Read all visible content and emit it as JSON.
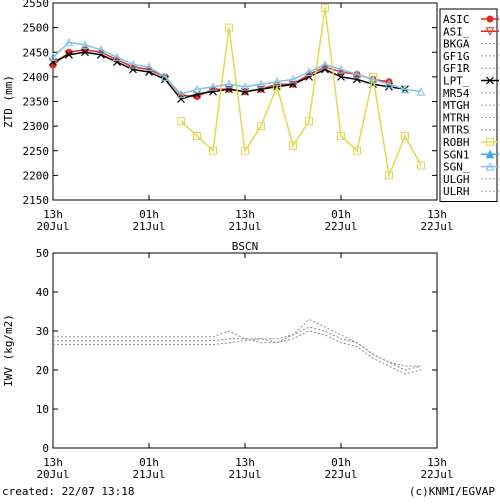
{
  "chart_data": [
    {
      "type": "line",
      "y_label": "ZTD (mm)",
      "x": [
        0,
        2,
        4,
        6,
        8,
        10,
        12,
        14,
        16,
        18,
        20,
        22,
        24,
        26,
        28,
        30,
        32,
        34,
        36,
        38,
        40,
        42,
        44,
        46
      ],
      "xlim": [
        0,
        48
      ],
      "xticks": [
        {
          "value": 0,
          "label": "13h\n20Jul"
        },
        {
          "value": 12,
          "label": "01h\n21Jul"
        },
        {
          "value": 24,
          "label": "13h\n21Jul"
        },
        {
          "value": 36,
          "label": "01h\n22Jul"
        },
        {
          "value": 48,
          "label": "13h\n22Jul"
        }
      ],
      "ylim": [
        2150,
        2550
      ],
      "yticks": [
        2150,
        2200,
        2250,
        2300,
        2350,
        2400,
        2450,
        2500,
        2550
      ],
      "legend": "outside-right",
      "series": [
        {
          "name": "ASIC",
          "color": "#e8281e",
          "marker": "circle-filled",
          "dashed": false,
          "values": [
            2424,
            2450,
            2455,
            2450,
            2435,
            2420,
            2415,
            2400,
            2363,
            2360,
            2375,
            2375,
            2370,
            2375,
            2385,
            2385,
            2405,
            2420,
            2410,
            2405,
            2395,
            2390,
            null,
            null
          ]
        },
        {
          "name": "ASI_",
          "color": "#e8281e",
          "marker": "triangle-down-open",
          "dashed": false,
          "values": [
            null,
            null,
            null,
            null,
            null,
            null,
            null,
            null,
            null,
            null,
            null,
            null,
            null,
            null,
            null,
            null,
            null,
            null,
            null,
            null,
            null,
            null,
            null,
            null
          ]
        },
        {
          "name": "BKGA",
          "color": "#999999",
          "marker": "none",
          "dashed": true,
          "values": [
            null,
            null,
            null,
            null,
            null,
            null,
            null,
            null,
            null,
            null,
            null,
            null,
            null,
            null,
            null,
            null,
            null,
            null,
            null,
            null,
            null,
            null,
            null,
            null
          ]
        },
        {
          "name": "GF1G",
          "color": "#999999",
          "marker": "none",
          "dashed": true,
          "values": [
            null,
            null,
            null,
            null,
            null,
            null,
            null,
            null,
            null,
            null,
            null,
            null,
            null,
            null,
            null,
            null,
            null,
            null,
            null,
            null,
            null,
            null,
            null,
            null
          ]
        },
        {
          "name": "GF1R",
          "color": "#999999",
          "marker": "none",
          "dashed": true,
          "values": [
            null,
            null,
            null,
            null,
            null,
            null,
            null,
            null,
            null,
            null,
            null,
            null,
            null,
            null,
            null,
            null,
            null,
            null,
            null,
            null,
            null,
            null,
            null,
            null
          ]
        },
        {
          "name": "LPT_",
          "color": "#000000",
          "marker": "x",
          "dashed": false,
          "values": [
            2430,
            2445,
            2450,
            2445,
            2430,
            2415,
            2410,
            2395,
            2355,
            2365,
            2370,
            2375,
            2370,
            2375,
            2380,
            2385,
            2400,
            2415,
            2400,
            2395,
            2385,
            2380,
            2375,
            null
          ]
        },
        {
          "name": "MR54",
          "color": "#999999",
          "marker": "none",
          "dashed": true,
          "values": [
            null,
            null,
            null,
            null,
            null,
            null,
            null,
            null,
            null,
            null,
            null,
            null,
            null,
            null,
            null,
            null,
            null,
            null,
            null,
            null,
            null,
            null,
            null,
            null
          ]
        },
        {
          "name": "MTGH",
          "color": "#999999",
          "marker": "none",
          "dashed": true,
          "values": [
            null,
            null,
            null,
            null,
            null,
            null,
            null,
            null,
            null,
            null,
            null,
            null,
            null,
            null,
            null,
            null,
            null,
            null,
            null,
            null,
            null,
            null,
            null,
            null
          ]
        },
        {
          "name": "MTRH",
          "color": "#999999",
          "marker": "none",
          "dashed": true,
          "values": [
            null,
            null,
            null,
            null,
            null,
            null,
            null,
            null,
            null,
            null,
            null,
            null,
            null,
            null,
            null,
            null,
            null,
            null,
            null,
            null,
            null,
            null,
            null,
            null
          ]
        },
        {
          "name": "MTRS",
          "color": "#999999",
          "marker": "none",
          "dashed": true,
          "values": [
            null,
            null,
            null,
            null,
            null,
            null,
            null,
            null,
            null,
            null,
            null,
            null,
            null,
            null,
            null,
            null,
            null,
            null,
            null,
            null,
            null,
            null,
            null,
            null
          ]
        },
        {
          "name": "ROBH",
          "color": "#e6d84a",
          "marker": "square-open",
          "dashed": false,
          "values": [
            null,
            null,
            null,
            null,
            null,
            null,
            null,
            null,
            2310,
            2280,
            2250,
            2500,
            2250,
            2300,
            2380,
            2260,
            2310,
            2540,
            2280,
            2250,
            2400,
            2200,
            2280,
            2220
          ]
        },
        {
          "name": "SGN1",
          "color": "#3fa9e0",
          "marker": "triangle-filled",
          "dashed": false,
          "values": [
            null,
            null,
            null,
            null,
            null,
            null,
            null,
            null,
            null,
            null,
            null,
            null,
            null,
            null,
            null,
            null,
            null,
            null,
            null,
            null,
            null,
            null,
            null,
            null
          ]
        },
        {
          "name": "SGN_",
          "color": "#7cc4ec",
          "marker": "triangle-open",
          "dashed": false,
          "values": [
            2440,
            2470,
            2465,
            2455,
            2440,
            2425,
            2420,
            2400,
            2365,
            2375,
            2380,
            2385,
            2380,
            2385,
            2390,
            2395,
            2410,
            2425,
            2415,
            2405,
            2395,
            2385,
            2375,
            2370
          ]
        },
        {
          "name": "ULGH",
          "color": "#999999",
          "marker": "none",
          "dashed": true,
          "values": [
            null,
            null,
            null,
            null,
            null,
            null,
            null,
            null,
            null,
            null,
            null,
            null,
            null,
            null,
            null,
            null,
            null,
            null,
            null,
            null,
            null,
            null,
            null,
            null
          ]
        },
        {
          "name": "ULRH",
          "color": "#999999",
          "marker": "none",
          "dashed": true,
          "values": [
            null,
            null,
            null,
            null,
            null,
            null,
            null,
            null,
            null,
            null,
            null,
            null,
            null,
            null,
            null,
            null,
            null,
            null,
            null,
            null,
            null,
            null,
            null,
            null
          ]
        }
      ]
    },
    {
      "type": "line",
      "title": "BSCN",
      "y_label": "IWV (kg/m2)",
      "x": [
        0,
        2,
        4,
        6,
        8,
        10,
        12,
        14,
        16,
        18,
        20,
        22,
        24,
        26,
        28,
        30,
        32,
        34,
        36,
        38,
        40,
        42,
        44,
        46
      ],
      "xlim": [
        0,
        48
      ],
      "xticks": [
        {
          "value": 0,
          "label": "13h\n20Jul"
        },
        {
          "value": 12,
          "label": "01h\n21Jul"
        },
        {
          "value": 24,
          "label": "13h\n21Jul"
        },
        {
          "value": 36,
          "label": "01h\n22Jul"
        },
        {
          "value": 48,
          "label": "13h\n22Jul"
        }
      ],
      "ylim": [
        0,
        50
      ],
      "yticks": [
        0,
        10,
        20,
        30,
        40,
        50
      ],
      "series": [
        {
          "color": "#888888",
          "marker": "none",
          "dashed": true,
          "values": [
            28.5,
            28.5,
            28.5,
            28.5,
            28.5,
            28.5,
            28.5,
            28.5,
            28.5,
            28.5,
            28.5,
            30,
            28,
            28,
            27,
            29,
            33,
            31,
            29,
            27,
            24,
            22,
            20,
            21
          ]
        },
        {
          "color": "#888888",
          "marker": "none",
          "dashed": true,
          "values": [
            27.5,
            27.5,
            27.5,
            27.5,
            27.5,
            27.5,
            27.5,
            27.5,
            27.5,
            27.5,
            27.5,
            28,
            28,
            27,
            27,
            28,
            30,
            29,
            27,
            26,
            23,
            21,
            19,
            20
          ]
        },
        {
          "color": "#888888",
          "marker": "none",
          "dashed": true,
          "values": [
            26.5,
            26.5,
            26.5,
            26.5,
            26.5,
            26.5,
            26.5,
            26.5,
            26.5,
            26.5,
            26.5,
            27,
            27.5,
            28,
            28,
            29,
            31,
            30,
            28,
            27,
            24,
            22,
            21,
            21
          ]
        }
      ]
    }
  ],
  "footer": {
    "created": "created: 22/07 13:18",
    "credit": "(c)KNMI/EGVAP"
  }
}
